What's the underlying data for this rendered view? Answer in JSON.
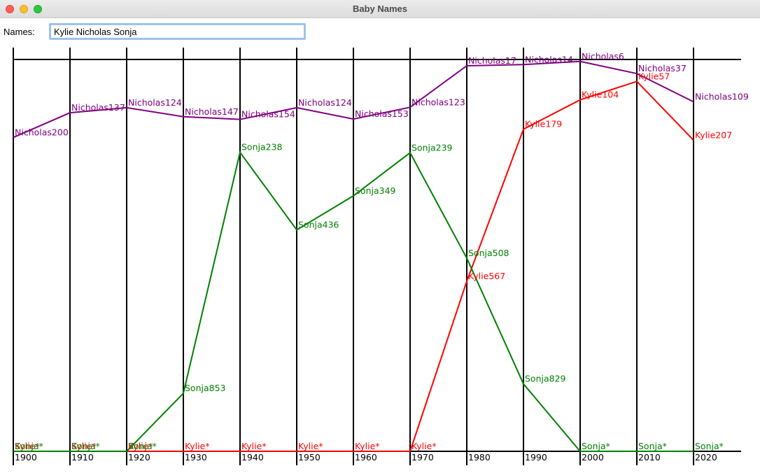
{
  "window": {
    "title": "Baby Names"
  },
  "names_field": {
    "label": "Names:",
    "value": "Kylie Nicholas Sonja"
  },
  "chart_data": {
    "type": "line",
    "title": "",
    "xlabel": "",
    "ylabel": "",
    "decades": [
      "1900",
      "1910",
      "1920",
      "1930",
      "1940",
      "1950",
      "1960",
      "1970",
      "1980",
      "1990",
      "2000",
      "2010",
      "2020"
    ],
    "rank_range": [
      1,
      1000
    ],
    "unranked_marker": "*",
    "series": [
      {
        "name": "Kylie",
        "color": "#ff0000",
        "ranks": [
          0,
          0,
          0,
          0,
          0,
          0,
          0,
          0,
          567,
          179,
          104,
          57,
          207
        ]
      },
      {
        "name": "Nicholas",
        "color": "#800080",
        "ranks": [
          200,
          137,
          124,
          147,
          154,
          124,
          153,
          123,
          17,
          14,
          6,
          37,
          109
        ]
      },
      {
        "name": "Sonja",
        "color": "#008000",
        "ranks": [
          0,
          0,
          0,
          853,
          238,
          436,
          349,
          239,
          508,
          829,
          0,
          0,
          0
        ]
      }
    ]
  }
}
